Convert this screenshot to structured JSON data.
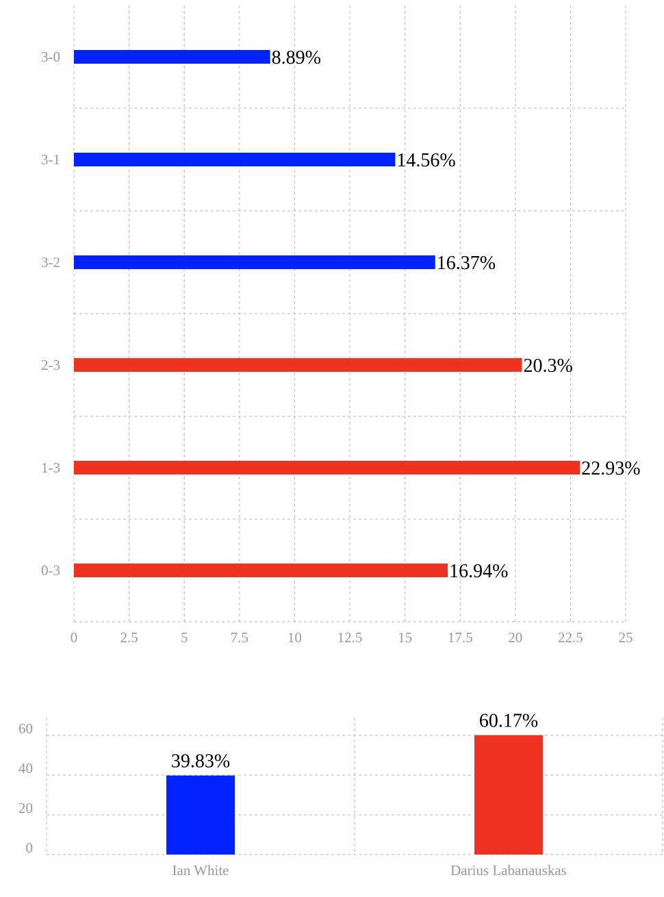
{
  "chart_data": [
    {
      "type": "bar",
      "orientation": "horizontal",
      "categories": [
        "3-0",
        "3-1",
        "3-2",
        "2-3",
        "1-3",
        "0-3"
      ],
      "values": [
        8.89,
        14.56,
        16.37,
        20.3,
        22.93,
        16.94
      ],
      "value_labels": [
        "8.89%",
        "14.56%",
        "16.37%",
        "20.3%",
        "22.93%",
        "16.94%"
      ],
      "colors": [
        "#0022ff",
        "#0022ff",
        "#0022ff",
        "#ee3322",
        "#ee3322",
        "#ee3322"
      ],
      "xlim": [
        0,
        25
      ],
      "xticks": [
        "0",
        "2.5",
        "5",
        "7.5",
        "10",
        "12.5",
        "15",
        "17.5",
        "20",
        "22.5",
        "25"
      ],
      "grid": true
    },
    {
      "type": "bar",
      "orientation": "vertical",
      "categories": [
        "Ian White",
        "Darius Labanauskas"
      ],
      "values": [
        39.83,
        60.17
      ],
      "value_labels": [
        "39.83%",
        "60.17%"
      ],
      "colors": [
        "#0022ff",
        "#ee3322"
      ],
      "ylim": [
        0,
        69
      ],
      "yticks": [
        "0",
        "20",
        "40",
        "60"
      ],
      "grid": true
    }
  ]
}
